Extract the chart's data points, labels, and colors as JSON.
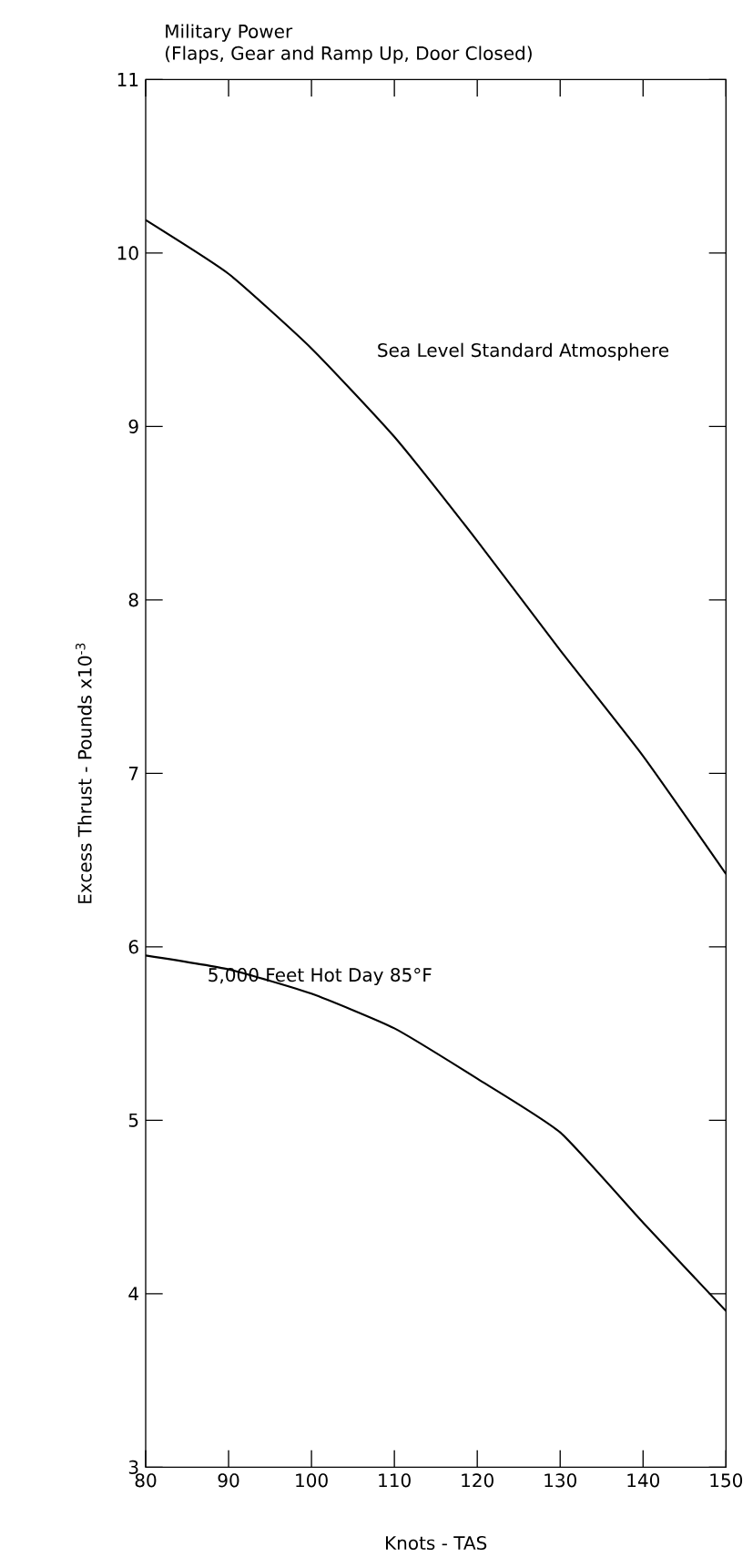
{
  "chart_data": {
    "type": "line",
    "title": "Military Power",
    "subtitle": "(Flaps, Gear and Ramp Up, Door Closed)",
    "xlabel": "Knots - TAS",
    "ylabel": "Excess Thrust - Pounds x10$^{-3}$",
    "x": [
      80,
      90,
      100,
      110,
      120,
      130,
      140,
      150
    ],
    "series": [
      {
        "name": "Sea Level Standard Atmosphere",
        "color": "#000000",
        "values": [
          10.19,
          9.88,
          9.45,
          8.94,
          8.34,
          7.71,
          7.1,
          6.42
        ]
      },
      {
        "name": "5,000 Feet Hot Day 85°F",
        "color": "#000000",
        "values": [
          5.95,
          5.87,
          5.73,
          5.53,
          5.24,
          4.93,
          4.41,
          3.9
        ]
      }
    ],
    "xlim": [
      80,
      150
    ],
    "ylim": [
      3,
      11
    ],
    "xticks": [
      80,
      90,
      100,
      110,
      120,
      130,
      140,
      150
    ],
    "yticks": [
      3,
      4,
      5,
      6,
      7,
      8,
      9,
      10,
      11
    ],
    "grid": false,
    "legend": false,
    "marker": "none",
    "line_style": "solid"
  }
}
